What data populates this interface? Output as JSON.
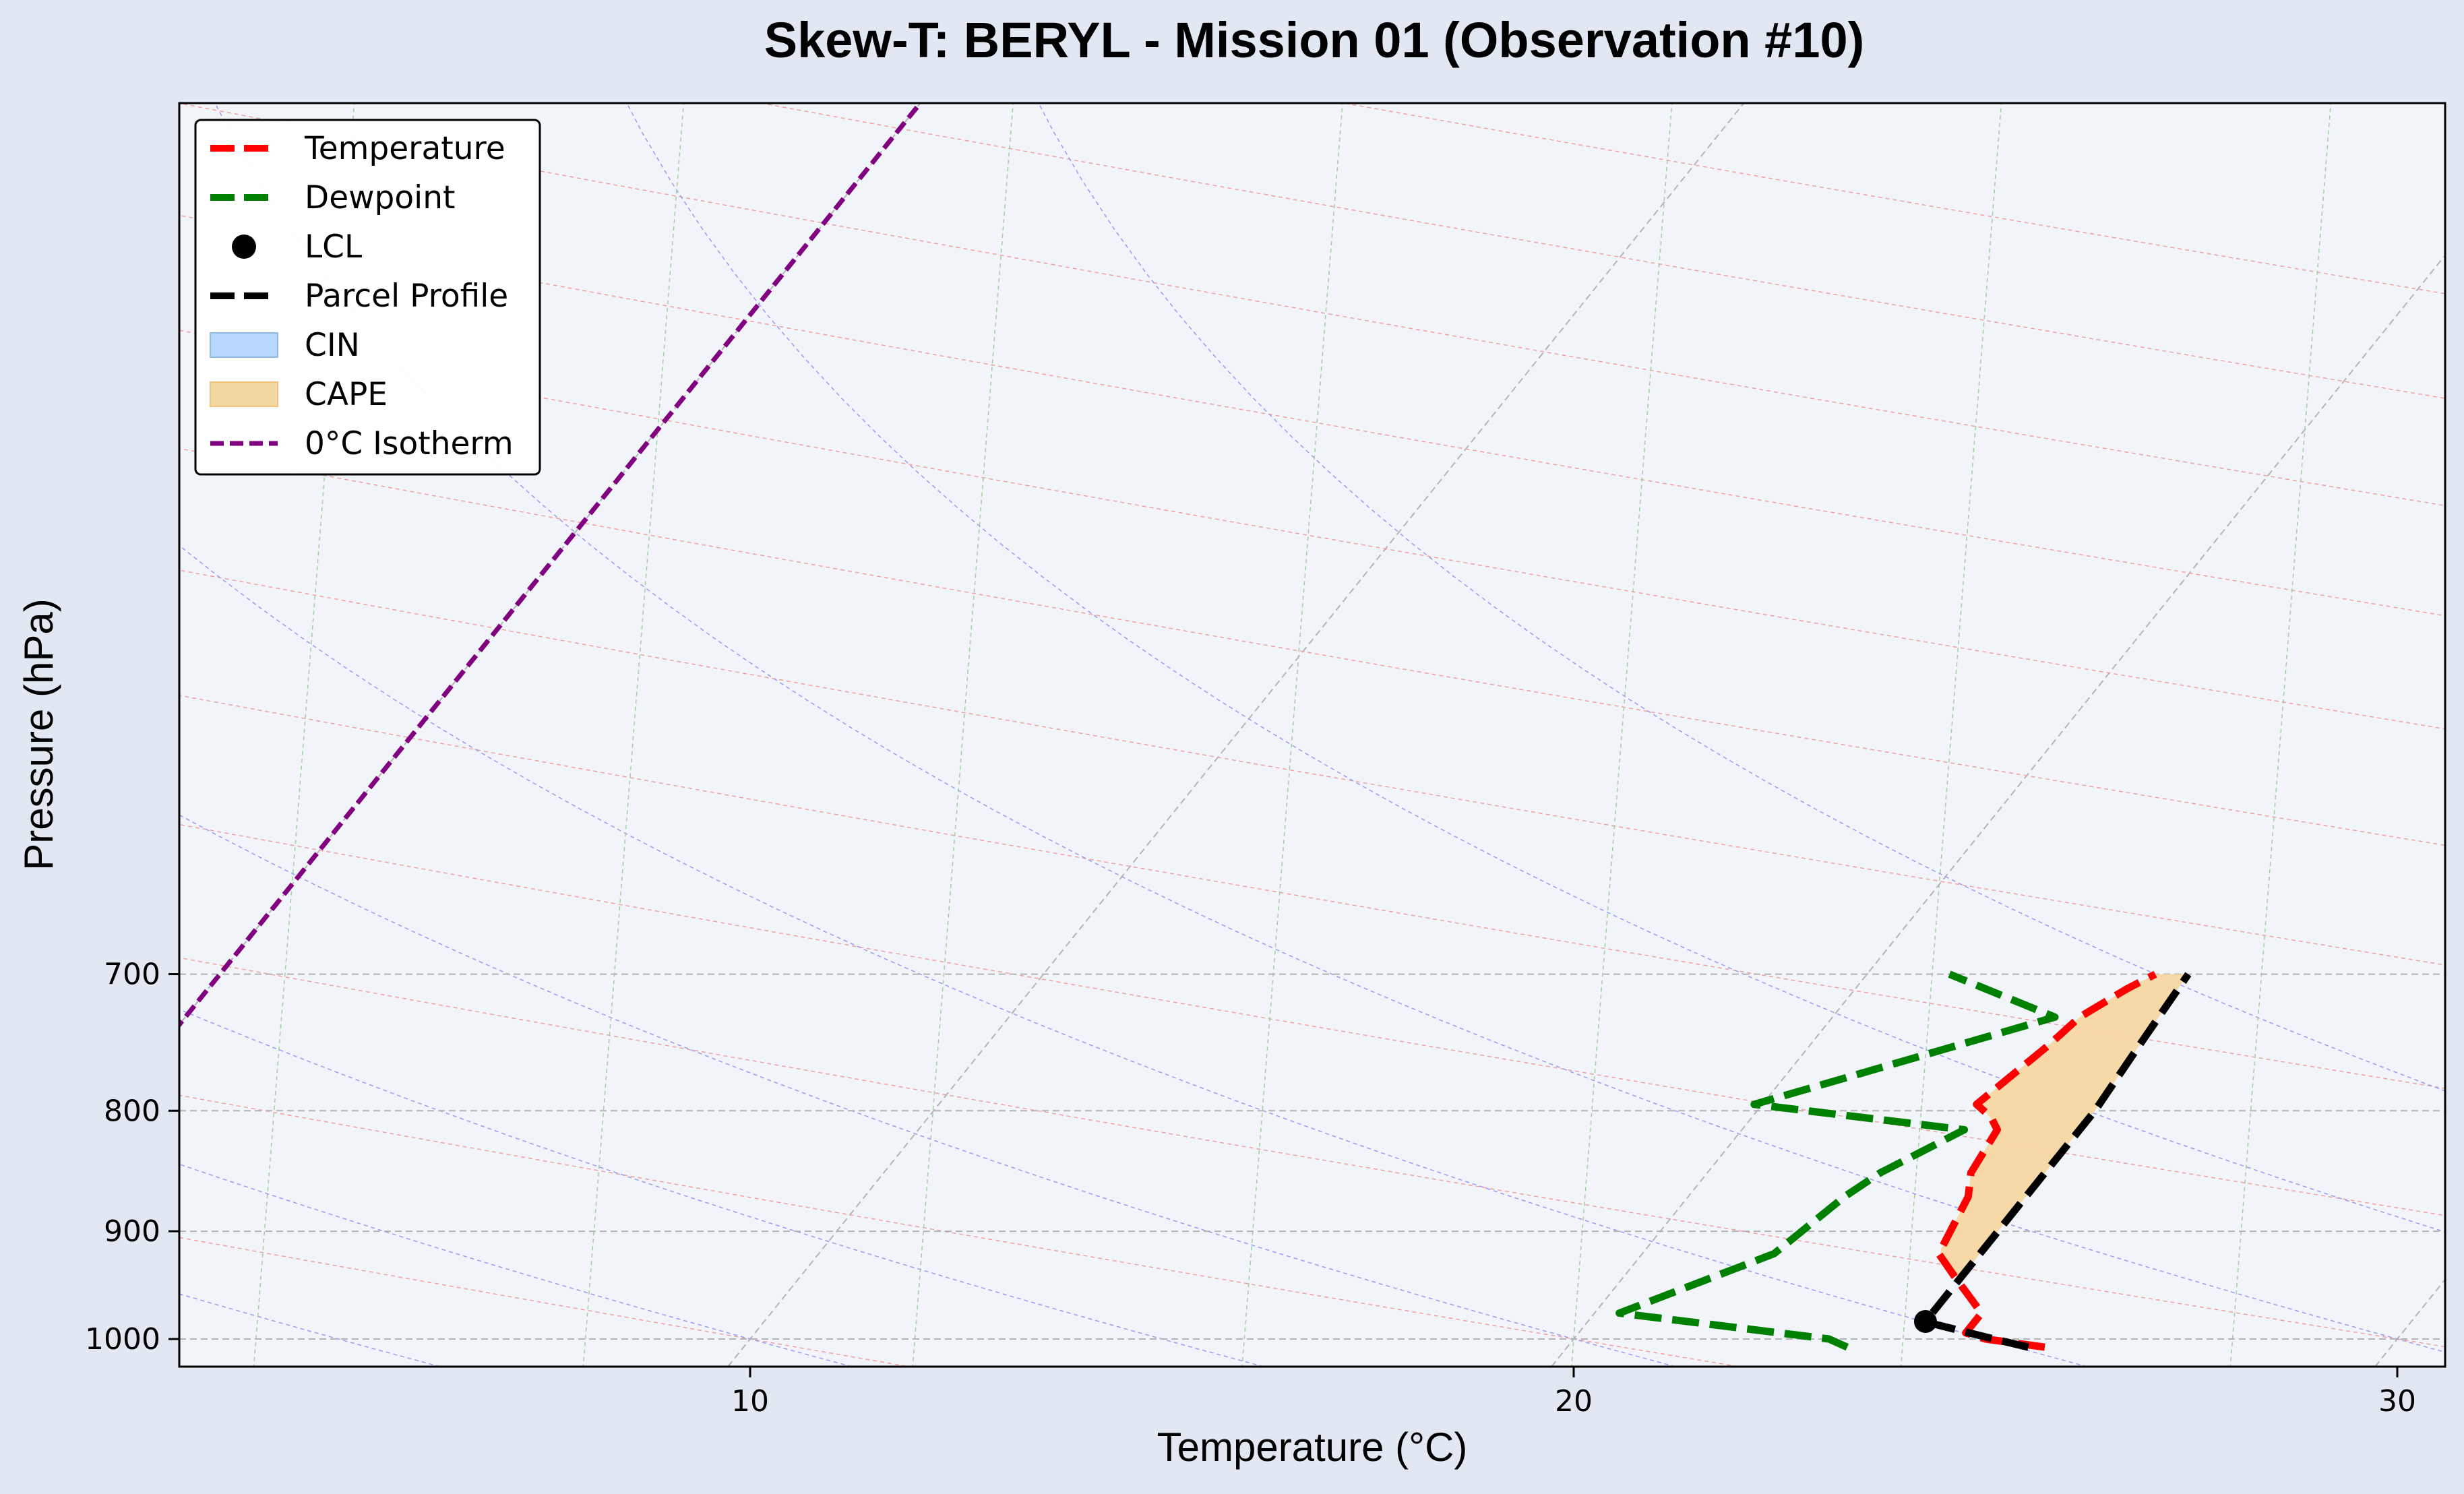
{
  "chart_data": {
    "type": "line",
    "title": "Skew-T: BERYL - Mission 01 (Observation #10)",
    "xlabel": "Temperature (°C)",
    "ylabel": "Pressure (hPa)",
    "xticks": [
      10,
      20,
      30
    ],
    "yticks": [
      700,
      800,
      900,
      1000
    ],
    "xlim": [
      3.1,
      30.6
    ],
    "ylim_pressure": [
      1008,
      648
    ],
    "y_scale": "log",
    "grid": true,
    "legend_position": "top-left",
    "series": [
      {
        "name": "Temperature",
        "color": "#ff0000",
        "style": "dashed",
        "points": [
          [
            1008,
            25.8
          ],
          [
            1000,
            25.0
          ],
          [
            994,
            24.7
          ],
          [
            975,
            24.7
          ],
          [
            940,
            24.0
          ],
          [
            920,
            23.6
          ],
          [
            870,
            23.4
          ],
          [
            850,
            23.2
          ],
          [
            815,
            23.1
          ],
          [
            805,
            22.9
          ],
          [
            795,
            22.6
          ],
          [
            750,
            22.9
          ],
          [
            730,
            23.0
          ],
          [
            710,
            23.3
          ],
          [
            700,
            23.5
          ]
        ]
      },
      {
        "name": "Dewpoint",
        "color": "#008000",
        "style": "dashed",
        "points": [
          [
            1008,
            23.4
          ],
          [
            1000,
            23.1
          ],
          [
            975,
            20.3
          ],
          [
            920,
            21.6
          ],
          [
            870,
            21.9
          ],
          [
            850,
            22.1
          ],
          [
            815,
            22.7
          ],
          [
            795,
            19.9
          ],
          [
            730,
            22.7
          ],
          [
            700,
            21.0
          ]
        ]
      },
      {
        "name": "Parcel Profile",
        "color": "#000000",
        "style": "dashed",
        "points": [
          [
            1008,
            25.6
          ],
          [
            1000,
            25.1
          ],
          [
            985,
            24.2
          ],
          [
            980,
            24.1
          ],
          [
            940,
            24.1
          ],
          [
            900,
            24.1
          ],
          [
            850,
            24.1
          ],
          [
            800,
            24.1
          ],
          [
            750,
            24.0
          ],
          [
            700,
            23.9
          ]
        ]
      }
    ],
    "lcl": {
      "name": "LCL",
      "pressure": 983,
      "temperature": 24.1
    },
    "cape_region": {
      "name": "CAPE",
      "color": "#f5d7a2"
    },
    "cin_region": {
      "name": "CIN",
      "color": "#b9d8ff"
    },
    "freezing_isotherm": {
      "name": "0°C Isotherm",
      "color": "#800080",
      "style": "dashed"
    },
    "legend": [
      "Temperature",
      "Dewpoint",
      "LCL",
      "Parcel Profile",
      "CIN",
      "CAPE",
      "0°C Isotherm"
    ]
  }
}
